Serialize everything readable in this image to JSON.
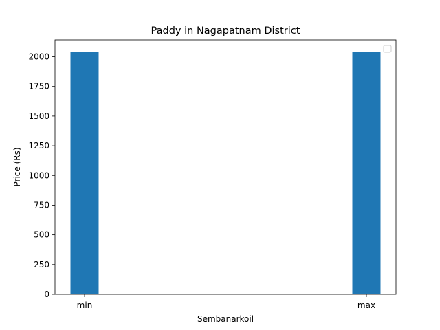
{
  "chart_data": {
    "type": "bar",
    "title": "Paddy in Nagapatnam District",
    "xlabel": "Sembanarkoil",
    "ylabel": "Price (Rs)",
    "categories": [
      "min",
      "max"
    ],
    "values": [
      2040,
      2040
    ],
    "ylim": [
      0,
      2142
    ],
    "yticks": [
      0,
      250,
      500,
      750,
      1000,
      1250,
      1500,
      1750,
      2000
    ],
    "bar_color": "#1f77b4",
    "legend": {
      "placement": "top-right",
      "entries": []
    },
    "grid": false
  }
}
